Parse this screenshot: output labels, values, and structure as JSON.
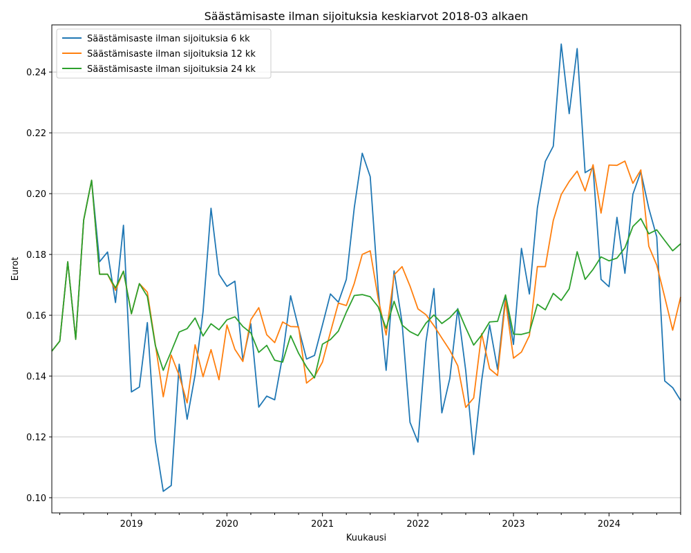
{
  "chart_data": {
    "type": "line",
    "title": "Säästämisaste ilman sijoituksia keskiarvot 2018-03 alkaen",
    "xlabel": "Kuukausi",
    "ylabel": "Eurot",
    "x_start": "2018-03",
    "x_end": "2024-10",
    "x_tick_labels": [
      "2019",
      "2020",
      "2021",
      "2022",
      "2023",
      "2024"
    ],
    "ylim": [
      0.095,
      0.2555
    ],
    "y_ticks": [
      0.1,
      0.12,
      0.14,
      0.16,
      0.18,
      0.2,
      0.22,
      0.24
    ],
    "y_tick_labels": [
      "0.10",
      "0.12",
      "0.14",
      "0.16",
      "0.18",
      "0.20",
      "0.22",
      "0.24"
    ],
    "grid": "horizontal",
    "legend_position": "top-left",
    "series": [
      {
        "name": "Säästämisaste ilman sijoituksia 6 kk",
        "color": "#1f77b4",
        "values": [
          0.1482,
          0.1515,
          0.1776,
          0.1521,
          0.1913,
          0.2044,
          0.1776,
          0.1808,
          0.1642,
          0.1896,
          0.1348,
          0.1364,
          0.1576,
          0.1188,
          0.1021,
          0.104,
          0.1439,
          0.1258,
          0.1404,
          0.1612,
          0.1952,
          0.1735,
          0.1695,
          0.1712,
          0.1452,
          0.1572,
          0.1298,
          0.1334,
          0.1322,
          0.1467,
          0.1664,
          0.1558,
          0.1456,
          0.1468,
          0.1568,
          0.167,
          0.1643,
          0.1718,
          0.1954,
          0.2133,
          0.2056,
          0.1684,
          0.1419,
          0.1746,
          0.1576,
          0.1248,
          0.1183,
          0.1512,
          0.1688,
          0.1279,
          0.1392,
          0.1622,
          0.1418,
          0.1142,
          0.1385,
          0.1568,
          0.1422,
          0.1662,
          0.1504,
          0.182,
          0.167,
          0.1953,
          0.2106,
          0.2156,
          0.2492,
          0.2263,
          0.2477,
          0.2069,
          0.2085,
          0.1718,
          0.1694,
          0.1922,
          0.1738,
          0.1998,
          0.2072,
          0.1952,
          0.1858,
          0.1384,
          0.1362,
          0.132
        ]
      },
      {
        "name": "Säästämisaste ilman sijoituksia 12 kk",
        "color": "#ff7f0e",
        "values": [
          0.1482,
          0.1515,
          0.1776,
          0.1521,
          0.1913,
          0.2044,
          0.1735,
          0.1735,
          0.1682,
          0.1745,
          0.1605,
          0.1704,
          0.1676,
          0.1505,
          0.1332,
          0.1469,
          0.1402,
          0.1312,
          0.1503,
          0.1398,
          0.1487,
          0.1388,
          0.1568,
          0.1488,
          0.1448,
          0.1585,
          0.1625,
          0.1536,
          0.151,
          0.1578,
          0.1563,
          0.1562,
          0.1377,
          0.1398,
          0.1446,
          0.1544,
          0.164,
          0.1632,
          0.1705,
          0.18,
          0.1812,
          0.1655,
          0.1535,
          0.1733,
          0.176,
          0.1696,
          0.1621,
          0.1602,
          0.1566,
          0.1525,
          0.1485,
          0.1434,
          0.1297,
          0.1328,
          0.154,
          0.1424,
          0.1402,
          0.1648,
          0.1459,
          0.1479,
          0.1533,
          0.176,
          0.176,
          0.1912,
          0.1997,
          0.204,
          0.2074,
          0.2009,
          0.2095,
          0.1936,
          0.2094,
          0.2093,
          0.2107,
          0.2034,
          0.2078,
          0.1827,
          0.1765,
          0.166,
          0.1551,
          0.166
        ]
      },
      {
        "name": "Säästämisaste ilman sijoituksia 24 kk",
        "color": "#2ca02c",
        "values": [
          0.1482,
          0.1515,
          0.1776,
          0.1521,
          0.1913,
          0.2044,
          0.1735,
          0.1735,
          0.169,
          0.1745,
          0.1605,
          0.1704,
          0.1662,
          0.1501,
          0.1419,
          0.1481,
          0.1545,
          0.1556,
          0.1591,
          0.1532,
          0.1572,
          0.1552,
          0.1585,
          0.1595,
          0.1563,
          0.1542,
          0.1478,
          0.1501,
          0.1452,
          0.1446,
          0.1533,
          0.1475,
          0.143,
          0.1394,
          0.1505,
          0.152,
          0.1548,
          0.161,
          0.1665,
          0.1668,
          0.1661,
          0.1628,
          0.1557,
          0.1646,
          0.1568,
          0.1546,
          0.1533,
          0.1574,
          0.1601,
          0.1573,
          0.1592,
          0.162,
          0.1559,
          0.1502,
          0.1535,
          0.1578,
          0.158,
          0.1667,
          0.1538,
          0.1537,
          0.1544,
          0.1636,
          0.1618,
          0.1672,
          0.1649,
          0.1687,
          0.1809,
          0.1718,
          0.1751,
          0.1792,
          0.1779,
          0.1788,
          0.1822,
          0.1892,
          0.1918,
          0.1868,
          0.1881,
          0.1846,
          0.1812,
          0.1835
        ]
      }
    ]
  }
}
